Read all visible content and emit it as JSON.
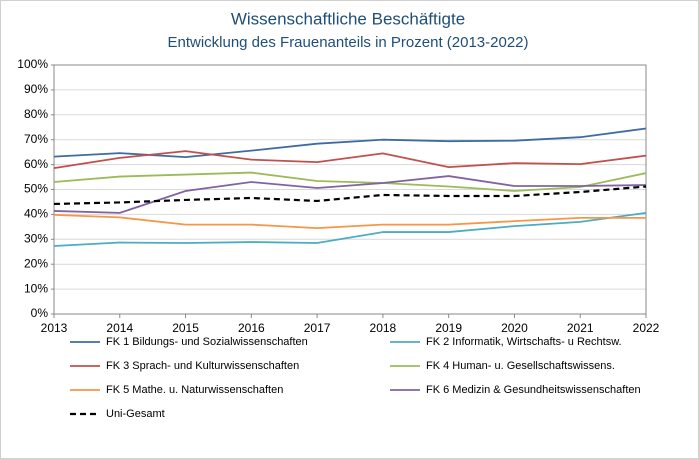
{
  "chart_data": {
    "type": "line",
    "title": "Wissenschaftliche Beschäftigte",
    "subtitle": "Entwicklung des Frauenanteils in Prozent (2013-2022)",
    "categories": [
      "2013",
      "2014",
      "2015",
      "2016",
      "2017",
      "2018",
      "2019",
      "2020",
      "2021",
      "2022"
    ],
    "ylim": [
      0,
      100
    ],
    "yticks": [
      {
        "value": 0,
        "label": "0%"
      },
      {
        "value": 10,
        "label": "10%"
      },
      {
        "value": 20,
        "label": "20%"
      },
      {
        "value": 30,
        "label": "30%"
      },
      {
        "value": 40,
        "label": "40%"
      },
      {
        "value": 50,
        "label": "50%"
      },
      {
        "value": 60,
        "label": "60%"
      },
      {
        "value": 70,
        "label": "70%"
      },
      {
        "value": 80,
        "label": "80%"
      },
      {
        "value": 90,
        "label": "90%"
      },
      {
        "value": 100,
        "label": "100%"
      }
    ],
    "grid": true,
    "series": [
      {
        "name": "FK 1 Bildungs- und Sozialwissenschaften",
        "color": "#3f6ba3",
        "values": [
          63.2,
          64.6,
          63.0,
          65.6,
          68.4,
          70.0,
          69.4,
          69.6,
          71.0,
          74.5
        ]
      },
      {
        "name": "FK 2 Informatik, Wirtschafts- u Rechtsw.",
        "color": "#4bacc6",
        "values": [
          27.3,
          28.7,
          28.5,
          28.9,
          28.5,
          32.9,
          32.9,
          35.3,
          37.0,
          40.6
        ]
      },
      {
        "name": "FK 3 Sprach- und Kulturwissenschaften",
        "color": "#c0504d",
        "values": [
          58.6,
          62.7,
          65.4,
          62.0,
          61.0,
          64.5,
          59.0,
          60.6,
          60.2,
          63.6
        ]
      },
      {
        "name": "FK 4 Human- u. Gesellschaftswissens.",
        "color": "#9bbb59",
        "values": [
          53.0,
          55.2,
          56.0,
          56.8,
          53.4,
          52.6,
          51.2,
          49.4,
          51.0,
          56.6
        ]
      },
      {
        "name": "FK 5 Mathe. u. Naturwissenschaften",
        "color": "#f79646",
        "values": [
          39.8,
          38.8,
          35.9,
          35.9,
          34.5,
          35.9,
          35.9,
          37.3,
          38.6,
          38.6
        ]
      },
      {
        "name": "FK 6 Medizin & Gesundheitswissenschaften",
        "color": "#8064a2",
        "values": [
          41.4,
          40.6,
          49.4,
          53.0,
          50.6,
          52.6,
          55.4,
          51.4,
          51.4,
          51.8
        ]
      },
      {
        "name": "Uni-Gesamt",
        "color": "#000000",
        "line_style": "dashed",
        "values": [
          44.2,
          44.8,
          45.8,
          46.6,
          45.4,
          47.8,
          47.4,
          47.4,
          49.0,
          51.2
        ]
      }
    ]
  }
}
